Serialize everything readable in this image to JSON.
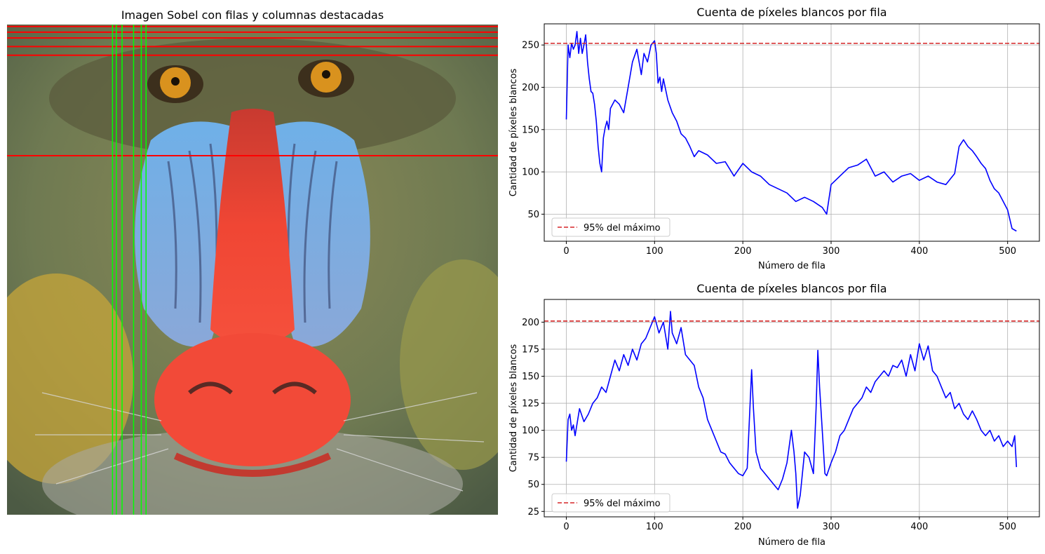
{
  "image_panel": {
    "title": "Imagen Sobel con filas y columnas destacadas",
    "subject": "mandrill-photo",
    "highlight_rows_color": "#ff0000",
    "highlight_cols_color": "#00ff00",
    "highlighted_rows": [
      2,
      8,
      14,
      23,
      32,
      137
    ],
    "highlighted_columns": [
      110,
      114,
      120,
      132,
      140,
      145
    ]
  },
  "chart_data": [
    {
      "type": "line",
      "title": "Cuenta de píxeles blancos por fila",
      "xlabel": "Número de fila",
      "ylabel": "Cantidad de píxeles blancos",
      "xlim": [
        -25,
        536
      ],
      "ylim": [
        18,
        275
      ],
      "xticks": [
        0,
        100,
        200,
        300,
        400,
        500
      ],
      "yticks": [
        50,
        100,
        150,
        200,
        250
      ],
      "grid": true,
      "legend_position": "lower-left",
      "threshold": {
        "value": 252,
        "label": "95% del máximo",
        "color": "#d62728",
        "style": "dashed"
      },
      "series": [
        {
          "color": "#0000ff",
          "x": [
            0,
            2,
            4,
            6,
            8,
            10,
            12,
            14,
            16,
            18,
            20,
            22,
            24,
            26,
            28,
            30,
            32,
            34,
            36,
            38,
            40,
            42,
            44,
            46,
            48,
            50,
            55,
            60,
            65,
            70,
            75,
            80,
            85,
            88,
            92,
            96,
            100,
            102,
            104,
            106,
            108,
            110,
            115,
            120,
            125,
            130,
            135,
            140,
            145,
            150,
            160,
            170,
            180,
            190,
            200,
            210,
            220,
            230,
            240,
            250,
            260,
            270,
            280,
            290,
            295,
            300,
            310,
            320,
            330,
            340,
            350,
            360,
            370,
            380,
            390,
            400,
            410,
            420,
            430,
            440,
            445,
            450,
            455,
            460,
            465,
            470,
            475,
            480,
            485,
            490,
            495,
            500,
            505,
            510
          ],
          "y": [
            162,
            250,
            235,
            252,
            245,
            250,
            266,
            240,
            258,
            240,
            250,
            262,
            230,
            210,
            195,
            193,
            180,
            160,
            130,
            110,
            100,
            140,
            152,
            160,
            150,
            175,
            185,
            180,
            170,
            200,
            230,
            245,
            215,
            240,
            230,
            250,
            255,
            240,
            205,
            212,
            195,
            210,
            185,
            170,
            160,
            145,
            140,
            130,
            118,
            125,
            120,
            110,
            112,
            95,
            110,
            100,
            95,
            85,
            80,
            75,
            65,
            70,
            65,
            58,
            50,
            85,
            95,
            105,
            108,
            115,
            95,
            100,
            88,
            95,
            98,
            90,
            95,
            88,
            85,
            98,
            130,
            138,
            130,
            125,
            118,
            110,
            104,
            90,
            80,
            75,
            65,
            55,
            33,
            30
          ]
        }
      ]
    },
    {
      "type": "line",
      "title": "Cuenta de píxeles blancos por fila",
      "xlabel": "Número de fila",
      "ylabel": "Cantidad de píxeles blancos",
      "xlim": [
        -25,
        536
      ],
      "ylim": [
        20,
        221
      ],
      "xticks": [
        0,
        100,
        200,
        300,
        400,
        500
      ],
      "yticks": [
        25,
        50,
        75,
        100,
        125,
        150,
        175,
        200
      ],
      "grid": true,
      "legend_position": "lower-left",
      "threshold": {
        "value": 201,
        "label": "95% del máximo",
        "color": "#d62728",
        "style": "dashed"
      },
      "series": [
        {
          "color": "#0000ff",
          "x": [
            0,
            2,
            4,
            6,
            8,
            10,
            15,
            20,
            25,
            30,
            35,
            40,
            45,
            50,
            55,
            60,
            65,
            70,
            75,
            80,
            85,
            90,
            95,
            100,
            105,
            110,
            115,
            118,
            120,
            125,
            130,
            135,
            140,
            145,
            150,
            155,
            160,
            165,
            170,
            175,
            180,
            185,
            190,
            195,
            200,
            205,
            208,
            210,
            212,
            215,
            220,
            225,
            230,
            235,
            240,
            245,
            250,
            255,
            258,
            260,
            262,
            265,
            270,
            275,
            280,
            283,
            285,
            287,
            290,
            293,
            295,
            300,
            305,
            310,
            315,
            320,
            325,
            330,
            335,
            340,
            345,
            350,
            355,
            360,
            365,
            370,
            375,
            380,
            385,
            390,
            395,
            400,
            405,
            410,
            415,
            420,
            425,
            430,
            435,
            440,
            445,
            450,
            455,
            460,
            465,
            470,
            475,
            480,
            485,
            490,
            495,
            500,
            505,
            508,
            510
          ],
          "y": [
            71,
            110,
            115,
            100,
            105,
            95,
            120,
            108,
            115,
            125,
            130,
            140,
            135,
            150,
            165,
            155,
            170,
            160,
            175,
            165,
            180,
            185,
            195,
            205,
            190,
            200,
            175,
            210,
            190,
            180,
            195,
            170,
            165,
            160,
            140,
            130,
            110,
            100,
            90,
            80,
            78,
            70,
            65,
            60,
            58,
            65,
            120,
            156,
            120,
            80,
            65,
            60,
            55,
            50,
            45,
            55,
            70,
            100,
            80,
            60,
            28,
            40,
            80,
            75,
            60,
            120,
            174,
            140,
            100,
            60,
            58,
            70,
            80,
            95,
            100,
            110,
            120,
            125,
            130,
            140,
            135,
            145,
            150,
            155,
            150,
            160,
            158,
            165,
            150,
            170,
            155,
            180,
            165,
            178,
            155,
            150,
            140,
            130,
            135,
            120,
            125,
            115,
            110,
            118,
            110,
            100,
            95,
            100,
            90,
            95,
            85,
            90,
            85,
            95,
            66
          ]
        }
      ]
    }
  ]
}
